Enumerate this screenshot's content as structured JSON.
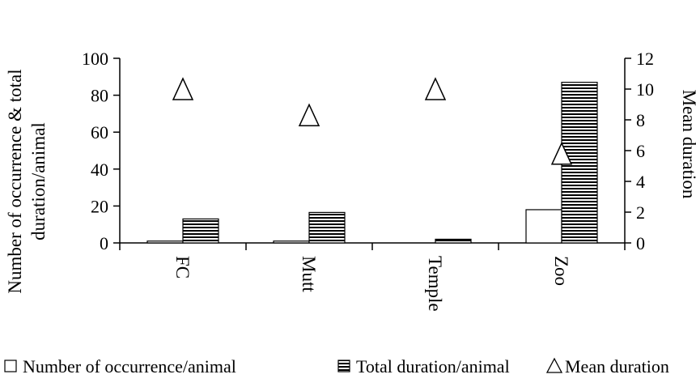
{
  "chart_data": {
    "type": "bar",
    "categories": [
      "FC",
      "Mutt",
      "Temple",
      "Zoo"
    ],
    "series": [
      {
        "name": "Number of occurrence/animal",
        "axis": "left",
        "kind": "bar",
        "pattern": "open",
        "values": [
          1,
          1,
          0,
          18
        ]
      },
      {
        "name": "Total duration/animal",
        "axis": "left",
        "kind": "bar",
        "pattern": "horizontal-lines",
        "values": [
          13,
          16.5,
          2,
          87
        ]
      },
      {
        "name": "Mean duration",
        "axis": "right",
        "kind": "marker",
        "marker": "open-triangle",
        "values": [
          10,
          8.3,
          10,
          5.8
        ]
      }
    ],
    "y_left": {
      "label": "Number of occurrence & total duration/animal",
      "label_lines": [
        "Number of occurrence & total",
        "duration/animal"
      ],
      "ylim": [
        0,
        100
      ],
      "ticks": [
        0,
        20,
        40,
        60,
        80,
        100
      ]
    },
    "y_right": {
      "label": "Mean duration",
      "ylim": [
        0,
        12
      ],
      "ticks": [
        0,
        2,
        4,
        6,
        8,
        10,
        12
      ]
    },
    "xlabel": "",
    "legend_position": "bottom",
    "grid": false
  }
}
